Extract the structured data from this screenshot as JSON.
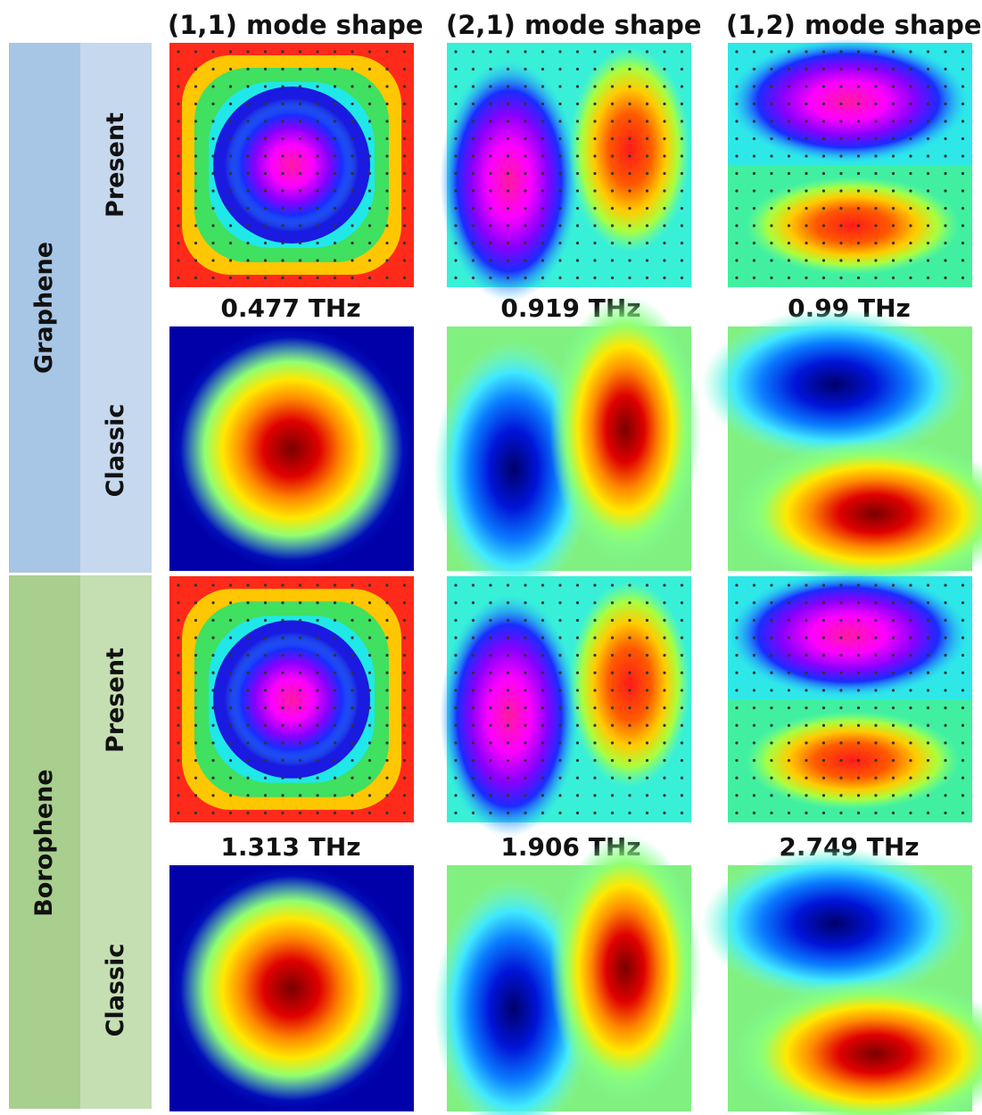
{
  "columns": [
    "(1,1) mode shape",
    "(2,1) mode shape",
    "(1,2) mode shape"
  ],
  "materials": [
    {
      "name": "Graphene",
      "color": "#a7c6e6",
      "sub_color": "#c5d8ee",
      "rows": [
        "Present",
        "Classic"
      ],
      "frequencies": [
        "0.477 THz",
        "0.919 THz",
        "0.99 THz"
      ]
    },
    {
      "name": "Borophene",
      "color": "#a8cf8e",
      "sub_color": "#c5dfb2",
      "rows": [
        "Present",
        "Classic"
      ],
      "frequencies": [
        "1.313 THz",
        "1.906 THz",
        "2.749 THz"
      ]
    }
  ],
  "colormap": "jet",
  "present_marker": "grid-dots"
}
